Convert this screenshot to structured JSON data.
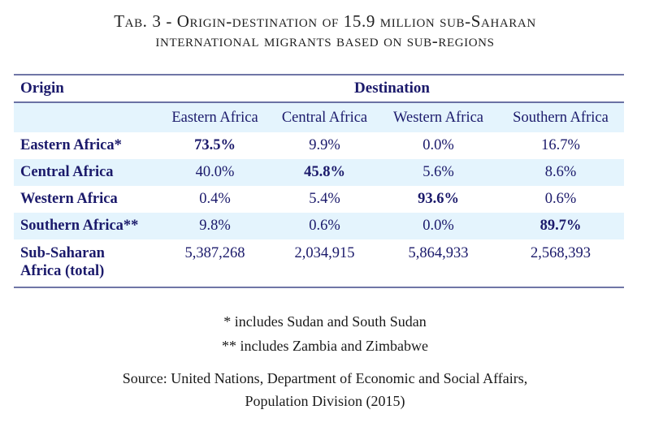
{
  "title": {
    "line1": "Tab. 3 - Origin-destination of 15.9 million sub-Saharan",
    "line2": "international migrants based on sub-regions"
  },
  "table": {
    "origin_header": "Origin",
    "destination_header": "Destination",
    "columns": [
      "Eastern Africa",
      "Central Africa",
      "Western Africa",
      "Southern Africa"
    ],
    "rows": [
      {
        "origin": "Eastern Africa*",
        "values": [
          "73.5%",
          "9.9%",
          "0.0%",
          "16.7%"
        ],
        "bold_index": 0
      },
      {
        "origin": "Central Africa",
        "values": [
          "40.0%",
          "45.8%",
          "5.6%",
          "8.6%"
        ],
        "bold_index": 1
      },
      {
        "origin": "Western Africa",
        "values": [
          "0.4%",
          "5.4%",
          "93.6%",
          "0.6%"
        ],
        "bold_index": 2
      },
      {
        "origin": "Southern Africa**",
        "values": [
          "9.8%",
          "0.6%",
          "0.0%",
          "89.7%"
        ],
        "bold_index": 3
      }
    ],
    "total": {
      "origin_line1": "Sub-Saharan",
      "origin_line2": "Africa (total)",
      "values": [
        "5,387,268",
        "2,034,915",
        "5,864,933",
        "2,568,393"
      ]
    }
  },
  "footnotes": {
    "note1": "* includes Sudan and South Sudan",
    "note2": "** includes Zambia and Zimbabwe",
    "source_line1": "Source: United Nations, Department of Economic and Social Affairs,",
    "source_line2": "Population Division (2015)"
  },
  "colors": {
    "table_text": "#1b1a6b",
    "shade": "#e4f4fd",
    "rule": "#6f76a6"
  }
}
